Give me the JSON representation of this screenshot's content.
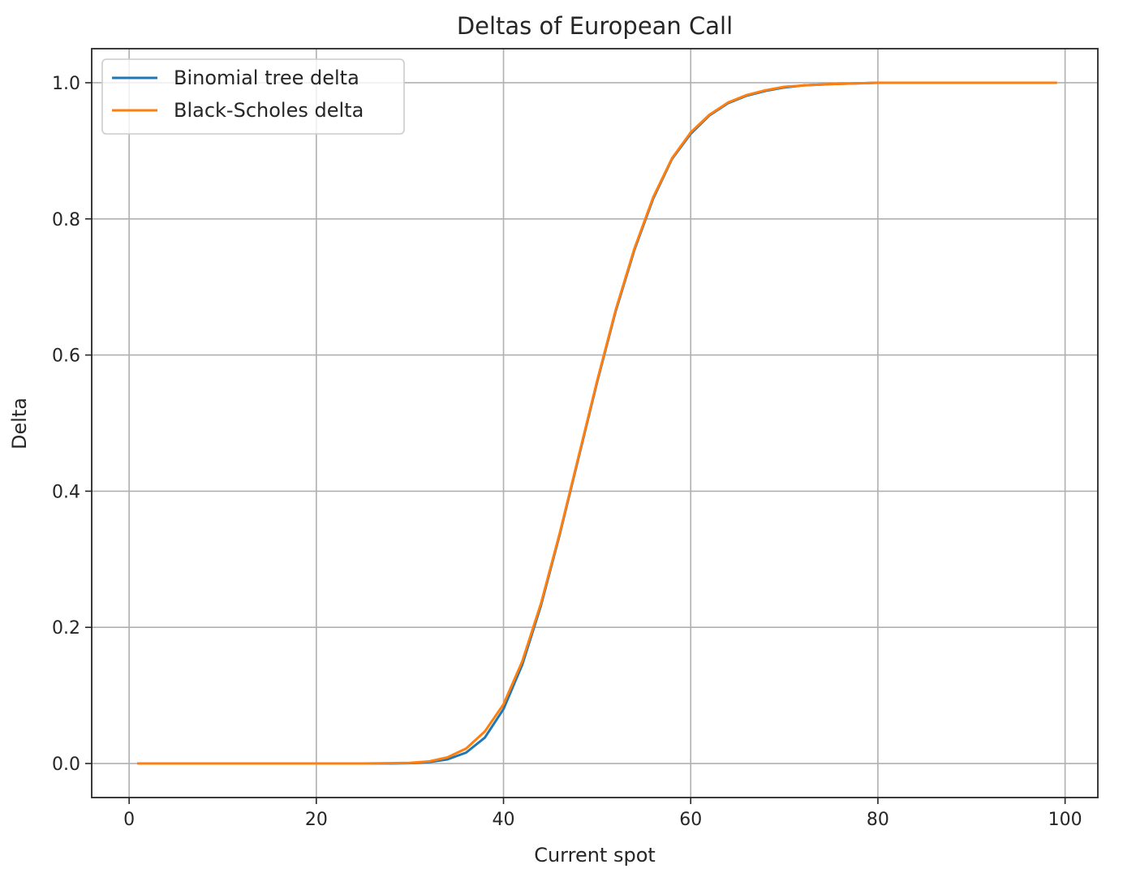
{
  "chart_data": {
    "type": "line",
    "title": "Deltas of European Call",
    "xlabel": "Current spot",
    "ylabel": "Delta",
    "xlim": [
      -4,
      103.5
    ],
    "ylim": [
      -0.05,
      1.05
    ],
    "xticks": [
      0,
      20,
      40,
      60,
      80,
      100
    ],
    "xtick_labels": [
      "0",
      "20",
      "40",
      "60",
      "80",
      "100"
    ],
    "yticks": [
      0.0,
      0.2,
      0.4,
      0.6,
      0.8,
      1.0
    ],
    "ytick_labels": [
      "0.0",
      "0.2",
      "0.4",
      "0.6",
      "0.8",
      "1.0"
    ],
    "grid": true,
    "legend_position": "top-left",
    "x": [
      1,
      5,
      10,
      15,
      20,
      25,
      28,
      30,
      32,
      34,
      36,
      38,
      40,
      42,
      44,
      46,
      48,
      50,
      52,
      54,
      56,
      58,
      60,
      62,
      64,
      66,
      68,
      70,
      72,
      75,
      80,
      85,
      90,
      95,
      99
    ],
    "series": [
      {
        "name": "Binomial tree delta",
        "color": "#1f77b4",
        "values": [
          0.0,
          0.0,
          0.0,
          0.0,
          0.0,
          0.0,
          0.0,
          0.0005,
          0.002,
          0.006,
          0.016,
          0.038,
          0.08,
          0.145,
          0.232,
          0.336,
          0.448,
          0.56,
          0.665,
          0.755,
          0.83,
          0.888,
          0.925,
          0.952,
          0.97,
          0.981,
          0.988,
          0.993,
          0.996,
          0.998,
          1.0,
          1.0,
          1.0,
          1.0,
          1.0
        ]
      },
      {
        "name": "Black-Scholes delta",
        "color": "#ff7f0e",
        "values": [
          0.0,
          0.0,
          0.0,
          0.0,
          0.0,
          0.0,
          0.0005,
          0.001,
          0.003,
          0.009,
          0.022,
          0.047,
          0.087,
          0.15,
          0.235,
          0.338,
          0.45,
          0.562,
          0.667,
          0.757,
          0.832,
          0.889,
          0.927,
          0.953,
          0.971,
          0.982,
          0.989,
          0.994,
          0.996,
          0.998,
          1.0,
          1.0,
          1.0,
          1.0,
          1.0
        ]
      }
    ]
  }
}
